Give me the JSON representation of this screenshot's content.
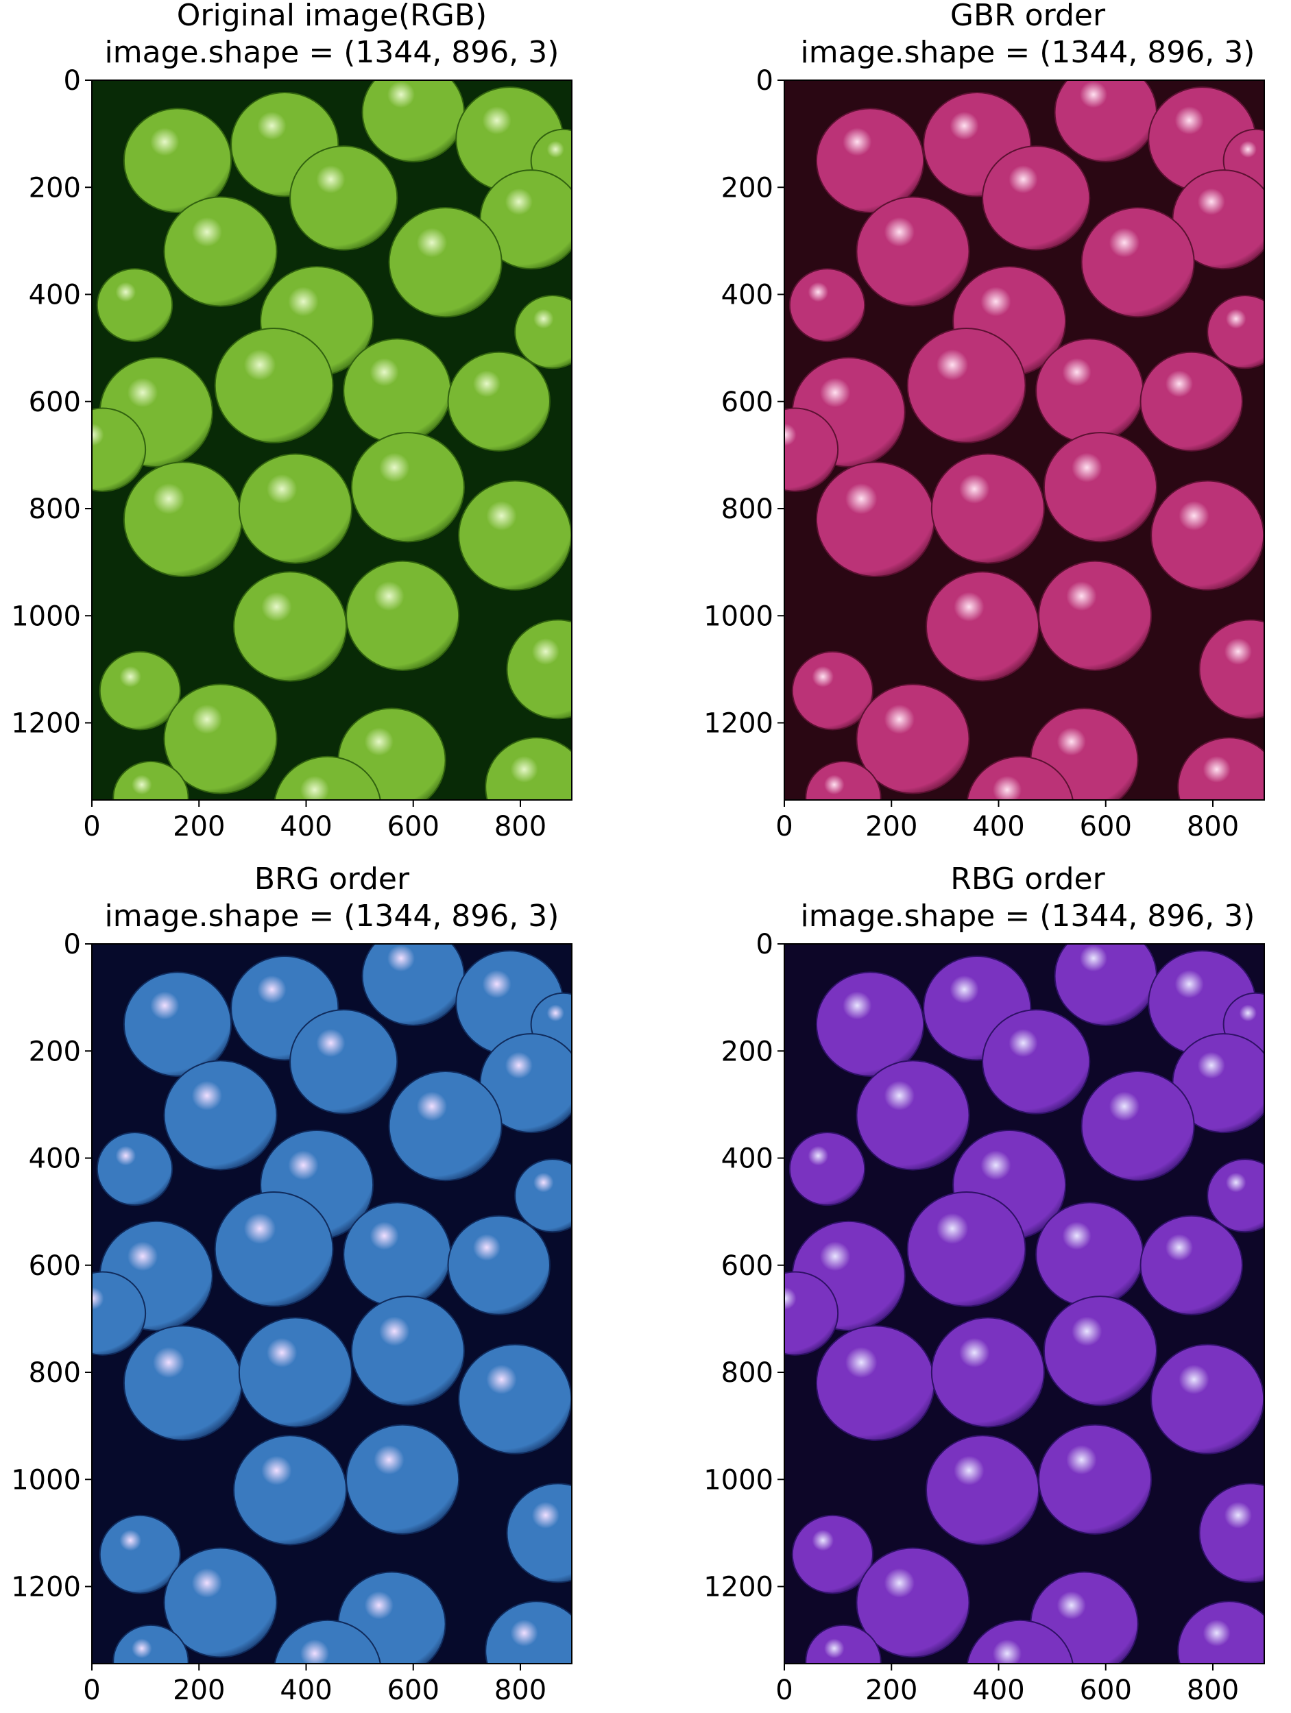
{
  "panels": [
    {
      "title_line1": "Original image(RGB)",
      "title_line2": "image.shape = (1344, 896, 3)",
      "colors": {
        "bg": "#082a06",
        "pea": "#79b833",
        "highlight": "#e6f8c8",
        "shadow": "#31620f"
      }
    },
    {
      "title_line1": "GBR order",
      "title_line2": "image.shape = (1344, 896, 3)",
      "colors": {
        "bg": "#2a0713",
        "pea": "#bb3377",
        "highlight": "#ffe0f0",
        "shadow": "#5c1132"
      }
    },
    {
      "title_line1": "BRG order",
      "title_line2": "image.shape = (1344, 896, 3)",
      "colors": {
        "bg": "#060a2b",
        "pea": "#3a7abf",
        "highlight": "#f1dfff",
        "shadow": "#102b5c"
      }
    },
    {
      "title_line1": "RBG order",
      "title_line2": "image.shape = (1344, 896, 3)",
      "colors": {
        "bg": "#0d0628",
        "pea": "#7a33c0",
        "highlight": "#e8e4ff",
        "shadow": "#2f1166"
      }
    }
  ],
  "axes": {
    "x_ticks": [
      "0",
      "200",
      "400",
      "600",
      "800"
    ],
    "y_ticks": [
      "0",
      "200",
      "400",
      "600",
      "800",
      "1000",
      "1200"
    ]
  }
}
